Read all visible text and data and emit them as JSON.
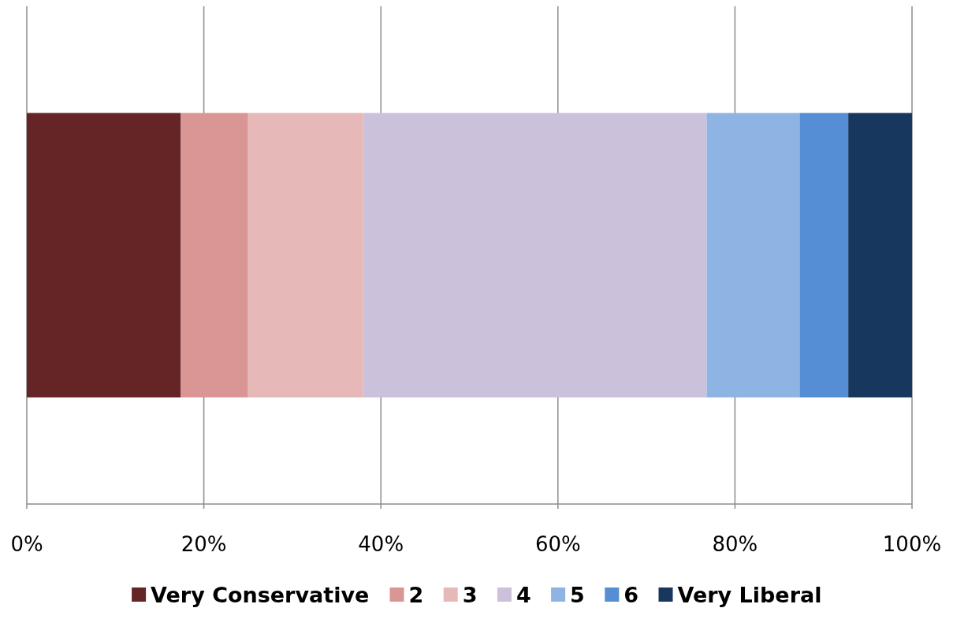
{
  "chart_data": {
    "type": "bar",
    "orientation": "horizontal",
    "stacked": true,
    "categories": [
      null
    ],
    "series": [
      {
        "name": "Very Conservative",
        "color": "#652426",
        "values": [
          17.4
        ]
      },
      {
        "name": "2",
        "color": "#d99694",
        "values": [
          7.6
        ]
      },
      {
        "name": "3",
        "color": "#e6b9b8",
        "values": [
          13.0
        ]
      },
      {
        "name": "4",
        "color": "#ccc1da",
        "values": [
          38.8
        ]
      },
      {
        "name": "5",
        "color": "#8eb4e3",
        "values": [
          10.5
        ]
      },
      {
        "name": "6",
        "color": "#558ed5",
        "values": [
          5.5
        ]
      },
      {
        "name": "Very Liberal",
        "color": "#17375e",
        "values": [
          7.2
        ]
      }
    ],
    "xlim": [
      0,
      100
    ],
    "xticks": [
      {
        "value": 0,
        "label": "0%"
      },
      {
        "value": 20,
        "label": "20%"
      },
      {
        "value": 40,
        "label": "40%"
      },
      {
        "value": 60,
        "label": "60%"
      },
      {
        "value": 80,
        "label": "80%"
      },
      {
        "value": 100,
        "label": "100%"
      }
    ],
    "grid": "x",
    "legend": "bottom"
  }
}
